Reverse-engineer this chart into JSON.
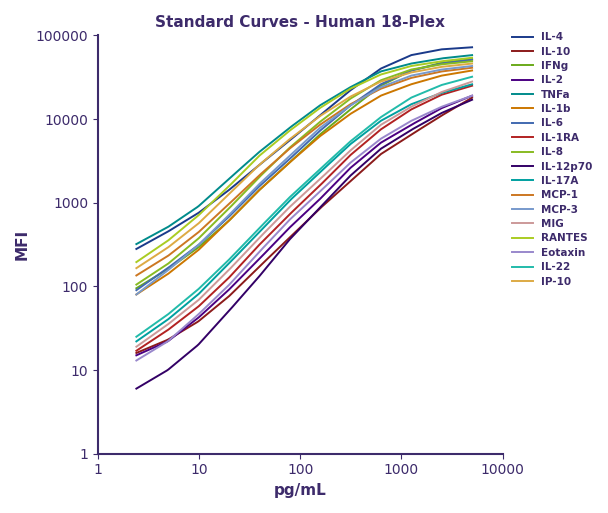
{
  "title": "Standard Curves - Human 18-Plex",
  "xlabel": "pg/mL",
  "ylabel": "MFI",
  "title_color": "#3d2b6b",
  "axis_color": "#3d2b6b",
  "xlim": [
    1,
    10000
  ],
  "ylim": [
    1,
    100000
  ],
  "figsize": [
    6.08,
    5.13
  ],
  "dpi": 100,
  "curves": [
    {
      "label": "IL-4",
      "color": "#1a3a8a",
      "x": [
        2.4,
        4.9,
        9.8,
        19.5,
        39,
        78,
        156,
        313,
        625,
        1250,
        2500,
        5000
      ],
      "y": [
        280,
        450,
        750,
        1400,
        2800,
        5500,
        11000,
        22000,
        40000,
        58000,
        68000,
        72000
      ]
    },
    {
      "label": "IL-10",
      "color": "#8b1a1a",
      "x": [
        2.4,
        4.9,
        9.8,
        19.5,
        39,
        78,
        156,
        313,
        625,
        1250,
        2500,
        5000
      ],
      "y": [
        16,
        23,
        38,
        75,
        170,
        380,
        850,
        1800,
        3800,
        6500,
        11000,
        18000
      ]
    },
    {
      "label": "IFNg",
      "color": "#6aaa1a",
      "x": [
        2.4,
        4.9,
        9.8,
        19.5,
        39,
        78,
        156,
        313,
        625,
        1250,
        2500,
        5000
      ],
      "y": [
        95,
        160,
        290,
        600,
        1400,
        3000,
        6500,
        13000,
        25000,
        38000,
        47000,
        52000
      ]
    },
    {
      "label": "IL-2",
      "color": "#4b0082",
      "x": [
        2.4,
        4.9,
        9.8,
        19.5,
        39,
        78,
        156,
        313,
        625,
        1250,
        2500,
        5000
      ],
      "y": [
        15,
        22,
        42,
        90,
        210,
        500,
        1100,
        2600,
        5200,
        8500,
        13500,
        19000
      ]
    },
    {
      "label": "TNFa",
      "color": "#008b8b",
      "x": [
        2.4,
        4.9,
        9.8,
        19.5,
        39,
        78,
        156,
        313,
        625,
        1250,
        2500,
        5000
      ],
      "y": [
        320,
        510,
        900,
        1900,
        4000,
        7800,
        14500,
        24000,
        37000,
        46000,
        53000,
        58000
      ]
    },
    {
      "label": "IL-1b",
      "color": "#cc7700",
      "x": [
        2.4,
        4.9,
        9.8,
        19.5,
        39,
        78,
        156,
        313,
        625,
        1250,
        2500,
        5000
      ],
      "y": [
        80,
        140,
        270,
        600,
        1400,
        3000,
        6200,
        11500,
        19000,
        26000,
        33000,
        38000
      ]
    },
    {
      "label": "IL-6",
      "color": "#4169b0",
      "x": [
        2.4,
        4.9,
        9.8,
        19.5,
        39,
        78,
        156,
        313,
        625,
        1250,
        2500,
        5000
      ],
      "y": [
        90,
        165,
        310,
        670,
        1550,
        3300,
        7200,
        14500,
        26000,
        38000,
        46000,
        51000
      ]
    },
    {
      "label": "IL-1RA",
      "color": "#b22222",
      "x": [
        2.4,
        4.9,
        9.8,
        19.5,
        39,
        78,
        156,
        313,
        625,
        1250,
        2500,
        5000
      ],
      "y": [
        17,
        30,
        57,
        125,
        310,
        720,
        1600,
        3700,
        7500,
        13000,
        19500,
        25000
      ]
    },
    {
      "label": "IL-8",
      "color": "#88bb22",
      "x": [
        2.4,
        4.9,
        9.8,
        19.5,
        39,
        78,
        156,
        313,
        625,
        1250,
        2500,
        5000
      ],
      "y": [
        105,
        185,
        370,
        840,
        2000,
        4500,
        9200,
        17500,
        29000,
        39000,
        45000,
        49000
      ]
    },
    {
      "label": "IL-12p70",
      "color": "#330066",
      "x": [
        2.4,
        4.9,
        9.8,
        19.5,
        39,
        78,
        156,
        313,
        625,
        1250,
        2500,
        5000
      ],
      "y": [
        6,
        10,
        20,
        50,
        130,
        360,
        870,
        2100,
        4400,
        7400,
        11800,
        17000
      ]
    },
    {
      "label": "IL-17A",
      "color": "#00a0a0",
      "x": [
        2.4,
        4.9,
        9.8,
        19.5,
        39,
        78,
        156,
        313,
        625,
        1250,
        2500,
        5000
      ],
      "y": [
        22,
        40,
        80,
        185,
        440,
        1050,
        2300,
        5000,
        9500,
        15000,
        20500,
        26000
      ]
    },
    {
      "label": "MCP-1",
      "color": "#cc7722",
      "x": [
        2.4,
        4.9,
        9.8,
        19.5,
        39,
        78,
        156,
        313,
        625,
        1250,
        2500,
        5000
      ],
      "y": [
        135,
        230,
        440,
        950,
        2100,
        4400,
        8500,
        15000,
        23000,
        31000,
        37000,
        41000
      ]
    },
    {
      "label": "MCP-3",
      "color": "#7799cc",
      "x": [
        2.4,
        4.9,
        9.8,
        19.5,
        39,
        78,
        156,
        313,
        625,
        1250,
        2500,
        5000
      ],
      "y": [
        80,
        155,
        310,
        700,
        1650,
        3600,
        7800,
        14500,
        24000,
        33000,
        39000,
        43000
      ]
    },
    {
      "label": "MIG",
      "color": "#cc9999",
      "x": [
        2.4,
        4.9,
        9.8,
        19.5,
        39,
        78,
        156,
        313,
        625,
        1250,
        2500,
        5000
      ],
      "y": [
        19,
        35,
        68,
        155,
        375,
        880,
        1900,
        4200,
        8500,
        14000,
        21000,
        28000
      ]
    },
    {
      "label": "RANTES",
      "color": "#aacc22",
      "x": [
        2.4,
        4.9,
        9.8,
        19.5,
        39,
        78,
        156,
        313,
        625,
        1250,
        2500,
        5000
      ],
      "y": [
        195,
        350,
        700,
        1550,
        3600,
        7200,
        13500,
        23000,
        34000,
        43000,
        49000,
        54000
      ]
    },
    {
      "label": "Eotaxin",
      "color": "#9988cc",
      "x": [
        2.4,
        4.9,
        9.8,
        19.5,
        39,
        78,
        156,
        313,
        625,
        1250,
        2500,
        5000
      ],
      "y": [
        13,
        22,
        46,
        102,
        255,
        620,
        1350,
        3000,
        5800,
        9500,
        14000,
        19000
      ]
    },
    {
      "label": "IL-22",
      "color": "#22bbaa",
      "x": [
        2.4,
        4.9,
        9.8,
        19.5,
        39,
        78,
        156,
        313,
        625,
        1250,
        2500,
        5000
      ],
      "y": [
        25,
        46,
        92,
        205,
        490,
        1150,
        2500,
        5400,
        10500,
        18000,
        25500,
        32000
      ]
    },
    {
      "label": "IP-10",
      "color": "#ddaa44",
      "x": [
        2.4,
        4.9,
        9.8,
        19.5,
        39,
        78,
        156,
        313,
        625,
        1250,
        2500,
        5000
      ],
      "y": [
        165,
        290,
        560,
        1250,
        2800,
        5700,
        10800,
        18500,
        28000,
        36000,
        42000,
        46000
      ]
    }
  ]
}
